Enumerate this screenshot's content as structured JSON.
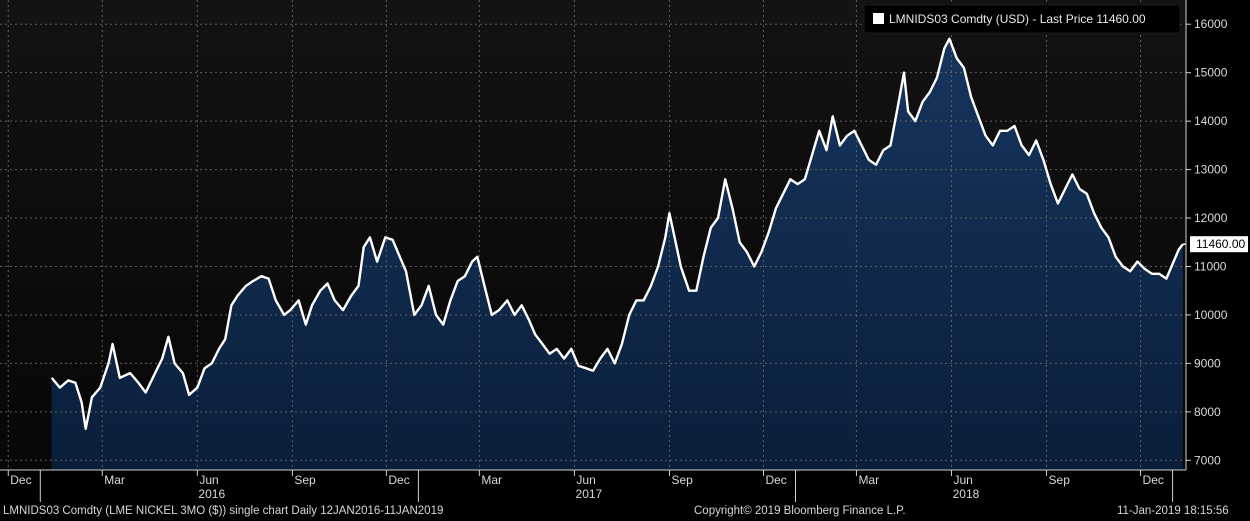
{
  "chart_data": {
    "type": "area",
    "legend": {
      "label": "LMNIDS03 Comdty (USD) - Last Price 11460.00",
      "placement": "top-right"
    },
    "last_price_tag": "11460.00",
    "last_price": 11460,
    "y_axis": {
      "side": "right",
      "ylim": [
        6800,
        16500
      ],
      "ticks": [
        7000,
        8000,
        9000,
        10000,
        11000,
        12000,
        13000,
        14000,
        15000,
        16000
      ],
      "tick_labels": [
        "7000",
        "8000",
        "9000",
        "10000",
        "11000",
        "12000",
        "13000",
        "14000",
        "15000",
        "16000"
      ]
    },
    "x_axis": {
      "month_ticks": [
        {
          "date": "2015-12-01",
          "label": "Dec"
        },
        {
          "date": "2016-03-01",
          "label": "Mar"
        },
        {
          "date": "2016-06-01",
          "label": "Jun"
        },
        {
          "date": "2016-09-01",
          "label": "Sep"
        },
        {
          "date": "2016-12-01",
          "label": "Dec"
        },
        {
          "date": "2017-03-01",
          "label": "Mar"
        },
        {
          "date": "2017-06-01",
          "label": "Jun"
        },
        {
          "date": "2017-09-01",
          "label": "Sep"
        },
        {
          "date": "2017-12-01",
          "label": "Dec"
        },
        {
          "date": "2018-03-01",
          "label": "Mar"
        },
        {
          "date": "2018-06-01",
          "label": "Jun"
        },
        {
          "date": "2018-09-01",
          "label": "Sep"
        },
        {
          "date": "2018-12-01",
          "label": "Dec"
        }
      ],
      "year_labels": [
        {
          "date": "2016-06-15",
          "label": "2016"
        },
        {
          "date": "2017-06-15",
          "label": "2017"
        },
        {
          "date": "2018-06-15",
          "label": "2018"
        }
      ]
    },
    "grid": true,
    "series": [
      {
        "name": "LMNIDS03 Comdty",
        "points": [
          [
            "2016-01-12",
            8700
          ],
          [
            "2016-01-20",
            8500
          ],
          [
            "2016-01-28",
            8650
          ],
          [
            "2016-02-04",
            8600
          ],
          [
            "2016-02-10",
            8200
          ],
          [
            "2016-02-14",
            7650
          ],
          [
            "2016-02-20",
            8300
          ],
          [
            "2016-02-28",
            8500
          ],
          [
            "2016-03-07",
            9000
          ],
          [
            "2016-03-11",
            9400
          ],
          [
            "2016-03-18",
            8700
          ],
          [
            "2016-03-28",
            8800
          ],
          [
            "2016-04-05",
            8600
          ],
          [
            "2016-04-12",
            8400
          ],
          [
            "2016-04-20",
            8750
          ],
          [
            "2016-04-28",
            9100
          ],
          [
            "2016-05-04",
            9550
          ],
          [
            "2016-05-10",
            9000
          ],
          [
            "2016-05-18",
            8800
          ],
          [
            "2016-05-24",
            8350
          ],
          [
            "2016-06-01",
            8500
          ],
          [
            "2016-06-08",
            8900
          ],
          [
            "2016-06-15",
            9000
          ],
          [
            "2016-06-22",
            9300
          ],
          [
            "2016-06-28",
            9500
          ],
          [
            "2016-07-04",
            10200
          ],
          [
            "2016-07-10",
            10400
          ],
          [
            "2016-07-18",
            10600
          ],
          [
            "2016-07-25",
            10700
          ],
          [
            "2016-08-02",
            10800
          ],
          [
            "2016-08-09",
            10750
          ],
          [
            "2016-08-16",
            10300
          ],
          [
            "2016-08-24",
            10000
          ],
          [
            "2016-08-30",
            10100
          ],
          [
            "2016-09-07",
            10300
          ],
          [
            "2016-09-14",
            9800
          ],
          [
            "2016-09-20",
            10200
          ],
          [
            "2016-09-28",
            10500
          ],
          [
            "2016-10-05",
            10650
          ],
          [
            "2016-10-12",
            10300
          ],
          [
            "2016-10-20",
            10100
          ],
          [
            "2016-10-28",
            10400
          ],
          [
            "2016-11-04",
            10600
          ],
          [
            "2016-11-09",
            11400
          ],
          [
            "2016-11-15",
            11600
          ],
          [
            "2016-11-22",
            11100
          ],
          [
            "2016-11-30",
            11600
          ],
          [
            "2016-12-07",
            11550
          ],
          [
            "2016-12-14",
            11200
          ],
          [
            "2016-12-20",
            10900
          ],
          [
            "2016-12-28",
            10000
          ],
          [
            "2017-01-04",
            10200
          ],
          [
            "2017-01-11",
            10600
          ],
          [
            "2017-01-18",
            10000
          ],
          [
            "2017-01-25",
            9800
          ],
          [
            "2017-02-01",
            10300
          ],
          [
            "2017-02-08",
            10700
          ],
          [
            "2017-02-15",
            10800
          ],
          [
            "2017-02-22",
            11100
          ],
          [
            "2017-02-27",
            11200
          ],
          [
            "2017-03-06",
            10600
          ],
          [
            "2017-03-13",
            10000
          ],
          [
            "2017-03-20",
            10100
          ],
          [
            "2017-03-28",
            10300
          ],
          [
            "2017-04-04",
            10000
          ],
          [
            "2017-04-11",
            10200
          ],
          [
            "2017-04-18",
            9900
          ],
          [
            "2017-04-24",
            9600
          ],
          [
            "2017-05-01",
            9400
          ],
          [
            "2017-05-08",
            9200
          ],
          [
            "2017-05-15",
            9300
          ],
          [
            "2017-05-22",
            9100
          ],
          [
            "2017-05-29",
            9300
          ],
          [
            "2017-06-05",
            8950
          ],
          [
            "2017-06-12",
            8900
          ],
          [
            "2017-06-19",
            8850
          ],
          [
            "2017-06-26",
            9100
          ],
          [
            "2017-07-03",
            9300
          ],
          [
            "2017-07-10",
            9000
          ],
          [
            "2017-07-17",
            9400
          ],
          [
            "2017-07-24",
            10000
          ],
          [
            "2017-07-31",
            10300
          ],
          [
            "2017-08-07",
            10300
          ],
          [
            "2017-08-14",
            10600
          ],
          [
            "2017-08-21",
            11000
          ],
          [
            "2017-08-28",
            11600
          ],
          [
            "2017-09-01",
            12100
          ],
          [
            "2017-09-06",
            11600
          ],
          [
            "2017-09-12",
            11000
          ],
          [
            "2017-09-20",
            10500
          ],
          [
            "2017-09-27",
            10500
          ],
          [
            "2017-10-04",
            11200
          ],
          [
            "2017-10-11",
            11800
          ],
          [
            "2017-10-18",
            12000
          ],
          [
            "2017-10-25",
            12800
          ],
          [
            "2017-11-01",
            12200
          ],
          [
            "2017-11-08",
            11500
          ],
          [
            "2017-11-15",
            11300
          ],
          [
            "2017-11-22",
            11000
          ],
          [
            "2017-11-29",
            11300
          ],
          [
            "2017-12-06",
            11700
          ],
          [
            "2017-12-13",
            12200
          ],
          [
            "2017-12-20",
            12500
          ],
          [
            "2017-12-27",
            12800
          ],
          [
            "2018-01-03",
            12700
          ],
          [
            "2018-01-10",
            12800
          ],
          [
            "2018-01-17",
            13300
          ],
          [
            "2018-01-24",
            13800
          ],
          [
            "2018-01-31",
            13400
          ],
          [
            "2018-02-06",
            14100
          ],
          [
            "2018-02-13",
            13500
          ],
          [
            "2018-02-20",
            13700
          ],
          [
            "2018-02-27",
            13800
          ],
          [
            "2018-03-06",
            13500
          ],
          [
            "2018-03-13",
            13200
          ],
          [
            "2018-03-20",
            13100
          ],
          [
            "2018-03-27",
            13400
          ],
          [
            "2018-04-03",
            13500
          ],
          [
            "2018-04-10",
            14300
          ],
          [
            "2018-04-16",
            15000
          ],
          [
            "2018-04-20",
            14200
          ],
          [
            "2018-04-27",
            14000
          ],
          [
            "2018-05-04",
            14400
          ],
          [
            "2018-05-11",
            14600
          ],
          [
            "2018-05-18",
            14900
          ],
          [
            "2018-05-25",
            15500
          ],
          [
            "2018-05-30",
            15700
          ],
          [
            "2018-06-06",
            15300
          ],
          [
            "2018-06-13",
            15100
          ],
          [
            "2018-06-20",
            14500
          ],
          [
            "2018-06-27",
            14100
          ],
          [
            "2018-07-04",
            13700
          ],
          [
            "2018-07-11",
            13500
          ],
          [
            "2018-07-18",
            13800
          ],
          [
            "2018-07-25",
            13800
          ],
          [
            "2018-08-01",
            13900
          ],
          [
            "2018-08-08",
            13500
          ],
          [
            "2018-08-15",
            13300
          ],
          [
            "2018-08-22",
            13600
          ],
          [
            "2018-08-29",
            13200
          ],
          [
            "2018-09-05",
            12700
          ],
          [
            "2018-09-12",
            12300
          ],
          [
            "2018-09-19",
            12600
          ],
          [
            "2018-09-26",
            12900
          ],
          [
            "2018-10-03",
            12600
          ],
          [
            "2018-10-10",
            12500
          ],
          [
            "2018-10-17",
            12100
          ],
          [
            "2018-10-24",
            11800
          ],
          [
            "2018-10-31",
            11600
          ],
          [
            "2018-11-07",
            11200
          ],
          [
            "2018-11-14",
            11000
          ],
          [
            "2018-11-21",
            10900
          ],
          [
            "2018-11-28",
            11100
          ],
          [
            "2018-12-05",
            10950
          ],
          [
            "2018-12-12",
            10850
          ],
          [
            "2018-12-19",
            10850
          ],
          [
            "2018-12-26",
            10750
          ],
          [
            "2019-01-02",
            11100
          ],
          [
            "2019-01-07",
            11350
          ],
          [
            "2019-01-11",
            11460
          ]
        ]
      }
    ]
  },
  "footer": {
    "description": "LMNIDS03 Comdty (LME NICKEL  3MO ($)) single chart  Daily 12JAN2016-11JAN2019",
    "copyright": "Copyright© 2019 Bloomberg Finance L.P.",
    "timestamp": "11-Jan-2019 18:15:56"
  },
  "colors": {
    "background": "#000000",
    "plot_top": "#121212",
    "area_fill": "#0f2a4e",
    "line": "#ffffff",
    "grid": "#5a5a5a",
    "text": "#d8d8d8"
  }
}
